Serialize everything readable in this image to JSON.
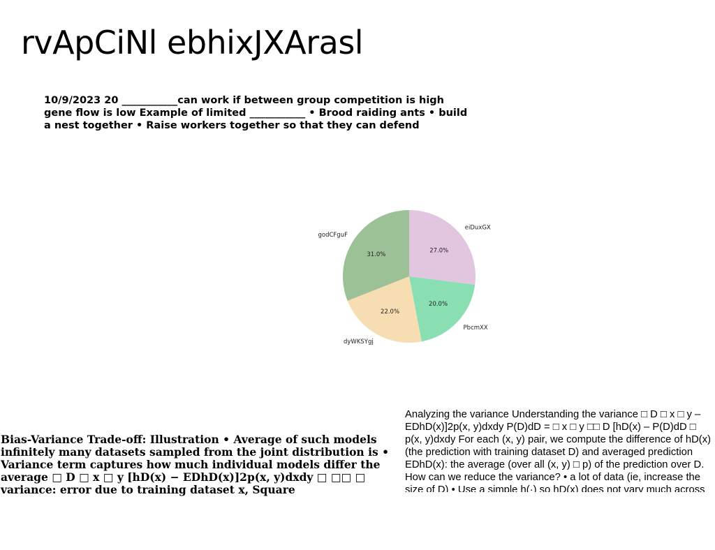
{
  "slide": {
    "title": "rvApCiNl ebhixJXArasl",
    "top_text": "10/9/2023 20 ___________can work if between group competition is high gene flow is low Example of limited ___________ • Brood raiding ants • build a nest together • Raise workers together so that they can defend",
    "left_text": "Bias-Variance Trade-off: Illustration • Average of such models infinitely many datasets sampled from the joint distribution is • Variance term captures how much individual models differ the average □ D □ x □ y [hD(x) − EDhD(x)]2p(x, y)dxdy □ □□ □ variance: error due to training dataset x, Square",
    "right_text": "Analyzing the variance Understanding the variance □ D □ x □ y – EDhD(x)]2p(x, y)dxdy P(D)dD = □ x □ y □□ D [hD(x) – P(D)dD □ p(x, y)dxdy For each (x, y) pair, we compute the difference of hD(x) (the prediction with training dataset D) and averaged prediction EDhD(x): the average (over all (x, y) □ p) of the prediction over D. How can we reduce the variance? • a lot of data (ie, increase the size of D) • Use a simple h(·) so hD(x) does not vary much across different training datasets. An"
  },
  "chart_data": {
    "type": "pie",
    "categories": [
      "eiDuxGX",
      "PbcmXX",
      "dyWKSYgj",
      "godCFguF"
    ],
    "values": [
      27.0,
      20.0,
      22.0,
      31.0
    ],
    "value_labels": [
      "27.0%",
      "20.0%",
      "22.0%",
      "31.0%"
    ],
    "colors": [
      "#e2c6df",
      "#8adfb2",
      "#f7ddb2",
      "#9dc197"
    ],
    "start_angle_deg": 90,
    "direction": "clockwise"
  }
}
